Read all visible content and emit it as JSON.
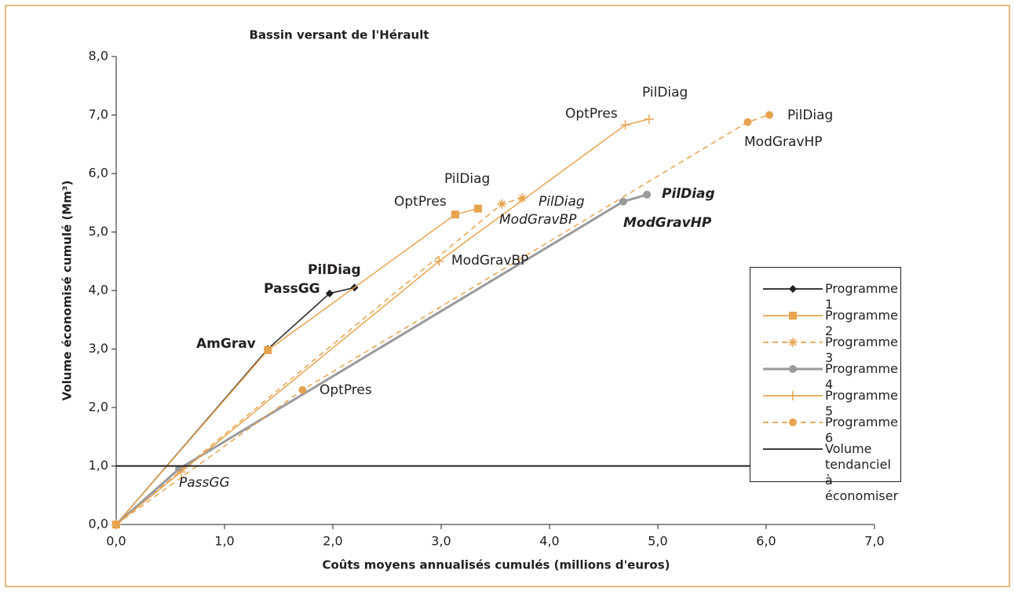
{
  "chart_data": {
    "type": "line",
    "title": "Bassin versant de l'Hérault",
    "xlabel": "Coûts moyens annualisés cumulés (millions d'euros)",
    "ylabel": "Volume économisé cumulé (Mm³)",
    "xlim": [
      0,
      7
    ],
    "ylim": [
      0,
      8
    ],
    "xticks": [
      {
        "value": 0,
        "label": "0,0"
      },
      {
        "value": 1,
        "label": "1,0"
      },
      {
        "value": 2,
        "label": "2,0"
      },
      {
        "value": 3,
        "label": "3,0"
      },
      {
        "value": 4,
        "label": "4,0"
      },
      {
        "value": 5,
        "label": "5,0"
      },
      {
        "value": 6,
        "label": "6,0"
      },
      {
        "value": 7,
        "label": "7,0"
      }
    ],
    "yticks": [
      {
        "value": 0,
        "label": "0,0"
      },
      {
        "value": 1,
        "label": "1,0"
      },
      {
        "value": 2,
        "label": "2,0"
      },
      {
        "value": 3,
        "label": "3,0"
      },
      {
        "value": 4,
        "label": "4,0"
      },
      {
        "value": 5,
        "label": "5,0"
      },
      {
        "value": 6,
        "label": "6,0"
      },
      {
        "value": 7,
        "label": "7,0"
      },
      {
        "value": 8,
        "label": "8,0"
      }
    ],
    "legend": "right",
    "series": [
      {
        "name": "Programme 1",
        "color": "#231f20",
        "marker": "diamond",
        "dashed": false,
        "x": [
          0,
          1.4,
          1.97,
          2.2
        ],
        "values": [
          0,
          3.0,
          3.95,
          4.05
        ]
      },
      {
        "name": "Programme 2",
        "color": "#e8a34f",
        "marker": "square",
        "dashed": false,
        "x": [
          0,
          1.4,
          3.13,
          3.34
        ],
        "values": [
          0,
          2.98,
          5.3,
          5.4
        ]
      },
      {
        "name": "Programme 3",
        "color": "#e8a34f",
        "marker": "asterisk",
        "dashed": true,
        "x": [
          0,
          3.56,
          3.75
        ],
        "values": [
          0,
          5.48,
          5.58
        ]
      },
      {
        "name": "Programme 4",
        "color": "#999a9c",
        "marker": "circle",
        "dashed": false,
        "x": [
          0,
          0.58,
          4.68,
          4.9
        ],
        "values": [
          0,
          0.95,
          5.52,
          5.64
        ]
      },
      {
        "name": "Programme 5",
        "color": "#e8a34f",
        "marker": "plus",
        "dashed": false,
        "x": [
          0,
          0.6,
          2.98,
          4.7,
          4.92
        ],
        "values": [
          0,
          0.9,
          4.5,
          6.83,
          6.93
        ]
      },
      {
        "name": "Programme 6",
        "color": "#e8a34f",
        "marker": "circle",
        "dashed": true,
        "x": [
          0,
          1.72,
          5.83,
          6.03
        ],
        "values": [
          0,
          2.3,
          6.88,
          7.0
        ]
      },
      {
        "name": "Volume tendanciel à économiser",
        "color": "#231f20",
        "marker": "none",
        "dashed": false,
        "x": [
          0,
          7
        ],
        "values": [
          1,
          1
        ]
      }
    ],
    "annotations": [
      "PilDiag",
      "PassGG",
      "AmGrav",
      "OptPres",
      "PilDiag",
      "PilDiag",
      "ModGravBP",
      "ModGravBP",
      "OptPres",
      "PilDiag",
      "PilDiag",
      "ModGravHP",
      "PilDiag",
      "ModGravHP",
      "OptPres",
      "PassGG"
    ]
  }
}
